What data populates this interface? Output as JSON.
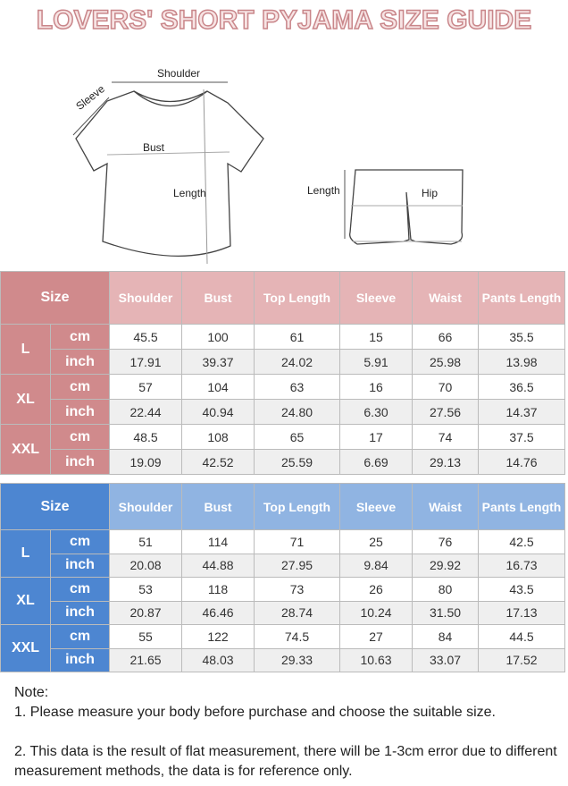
{
  "title": "LOVERS'  SHORT PYJAMA SIZE GUIDE",
  "diagram": {
    "shoulder": "Shoulder",
    "sleeve": "Sleeve",
    "bust": "Bust",
    "top_length": "Length",
    "pants_length": "Length",
    "hip": "Hip"
  },
  "columns": [
    "Shoulder",
    "Bust",
    "Top Length",
    "Sleeve",
    "Waist",
    "Pants Length"
  ],
  "size_label": "Size",
  "colors": {
    "pink_dark": "#d08a8c",
    "pink_light": "#e5b4b6",
    "blue_dark": "#4d86d1",
    "blue_light": "#90b4e2",
    "title": "#c9868a"
  },
  "tables": [
    {
      "rows": [
        {
          "size": "L",
          "cm": [
            "45.5",
            "100",
            "61",
            "15",
            "66",
            "35.5"
          ],
          "inch": [
            "17.91",
            "39.37",
            "24.02",
            "5.91",
            "25.98",
            "13.98"
          ]
        },
        {
          "size": "XL",
          "cm": [
            "57",
            "104",
            "63",
            "16",
            "70",
            "36.5"
          ],
          "inch": [
            "22.44",
            "40.94",
            "24.80",
            "6.30",
            "27.56",
            "14.37"
          ]
        },
        {
          "size": "XXL",
          "cm": [
            "48.5",
            "108",
            "65",
            "17",
            "74",
            "37.5"
          ],
          "inch": [
            "19.09",
            "42.52",
            "25.59",
            "6.69",
            "29.13",
            "14.76"
          ]
        }
      ]
    },
    {
      "rows": [
        {
          "size": "L",
          "cm": [
            "51",
            "114",
            "71",
            "25",
            "76",
            "42.5"
          ],
          "inch": [
            "20.08",
            "44.88",
            "27.95",
            "9.84",
            "29.92",
            "16.73"
          ]
        },
        {
          "size": "XL",
          "cm": [
            "53",
            "118",
            "73",
            "26",
            "80",
            "43.5"
          ],
          "inch": [
            "20.87",
            "46.46",
            "28.74",
            "10.24",
            "31.50",
            "17.13"
          ]
        },
        {
          "size": "XXL",
          "cm": [
            "55",
            "122",
            "74.5",
            "27",
            "84",
            "44.5"
          ],
          "inch": [
            "21.65",
            "48.03",
            "29.33",
            "10.63",
            "33.07",
            "17.52"
          ]
        }
      ]
    }
  ],
  "units": {
    "cm": "cm",
    "inch": "inch"
  },
  "notes": {
    "heading": "Note:",
    "items": [
      "1. Please measure your body before purchase and choose the suitable size.",
      "2. This data is the result of flat measurement, there will be 1-3cm error due to different measurement methods, the data is for reference only."
    ]
  }
}
